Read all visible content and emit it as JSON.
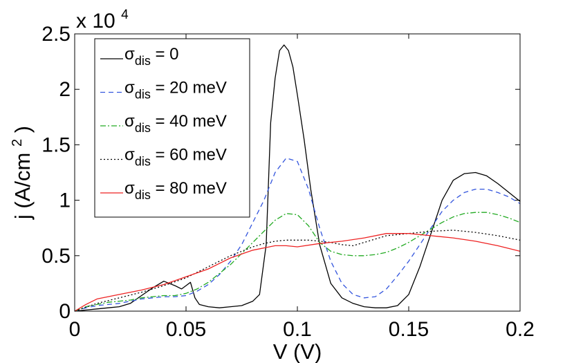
{
  "chart_data": {
    "type": "line",
    "xlabel": "V (V)",
    "ylabel": "j (A/cm²)",
    "ylabel_main": "j (A/cm",
    "ylabel_sup": "2",
    "ylabel_close": ")",
    "y_multiplier_prefix": "x 10",
    "y_multiplier_exp": "4",
    "xlim": [
      0,
      0.2
    ],
    "ylim": [
      0,
      2.5
    ],
    "xticks": [
      0,
      0.05,
      0.1,
      0.15,
      0.2
    ],
    "xtick_labels": [
      "0",
      "0.05",
      "0.1",
      "0.15",
      "0.2"
    ],
    "yticks": [
      0,
      0.5,
      1,
      1.5,
      2,
      2.5
    ],
    "ytick_labels": [
      "0",
      "0.5",
      "1",
      "1.5",
      "2",
      "2.5"
    ],
    "grid": false,
    "legend_position": "top-left",
    "legend_symbol": "σ",
    "legend_subscript": "dis",
    "series": [
      {
        "name": "σdis = 0",
        "label_value": " = 0",
        "color": "#000000",
        "dash": "",
        "x": [
          0,
          0.005,
          0.01,
          0.015,
          0.02,
          0.025,
          0.03,
          0.035,
          0.04,
          0.045,
          0.048,
          0.05,
          0.052,
          0.054,
          0.056,
          0.06,
          0.065,
          0.07,
          0.075,
          0.08,
          0.083,
          0.086,
          0.088,
          0.09,
          0.092,
          0.094,
          0.096,
          0.098,
          0.1,
          0.103,
          0.106,
          0.11,
          0.115,
          0.12,
          0.125,
          0.13,
          0.135,
          0.14,
          0.145,
          0.15,
          0.155,
          0.16,
          0.165,
          0.17,
          0.175,
          0.18,
          0.185,
          0.19,
          0.195,
          0.2
        ],
        "y": [
          0,
          0.01,
          0.02,
          0.03,
          0.04,
          0.07,
          0.14,
          0.21,
          0.27,
          0.23,
          0.2,
          0.23,
          0.26,
          0.12,
          0.06,
          0.04,
          0.03,
          0.04,
          0.05,
          0.09,
          0.15,
          0.6,
          1.7,
          2.1,
          2.35,
          2.4,
          2.35,
          2.2,
          1.95,
          1.55,
          1.1,
          0.6,
          0.25,
          0.12,
          0.07,
          0.04,
          0.03,
          0.03,
          0.05,
          0.15,
          0.4,
          0.7,
          1.0,
          1.18,
          1.24,
          1.25,
          1.22,
          1.15,
          1.07,
          0.99
        ]
      },
      {
        "name": "σdis = 20 meV",
        "label_value": " = 20 meV",
        "color": "#3355dd",
        "dash": "7,5",
        "x": [
          0,
          0.005,
          0.01,
          0.015,
          0.02,
          0.025,
          0.03,
          0.035,
          0.04,
          0.045,
          0.05,
          0.055,
          0.06,
          0.065,
          0.07,
          0.075,
          0.08,
          0.085,
          0.09,
          0.095,
          0.1,
          0.105,
          0.11,
          0.115,
          0.12,
          0.125,
          0.13,
          0.135,
          0.14,
          0.145,
          0.15,
          0.155,
          0.16,
          0.165,
          0.17,
          0.175,
          0.18,
          0.185,
          0.19,
          0.195,
          0.2
        ],
        "y": [
          0,
          0.03,
          0.05,
          0.06,
          0.07,
          0.09,
          0.11,
          0.12,
          0.13,
          0.13,
          0.14,
          0.18,
          0.24,
          0.33,
          0.45,
          0.6,
          0.8,
          1.0,
          1.25,
          1.38,
          1.35,
          1.1,
          0.75,
          0.45,
          0.25,
          0.15,
          0.12,
          0.13,
          0.2,
          0.32,
          0.45,
          0.6,
          0.75,
          0.9,
          1.0,
          1.07,
          1.1,
          1.1,
          1.07,
          1.03,
          0.97
        ]
      },
      {
        "name": "σdis = 40 meV",
        "label_value": " = 40 meV",
        "color": "#22aa22",
        "dash": "8,3,2,3",
        "x": [
          0,
          0.005,
          0.01,
          0.015,
          0.02,
          0.025,
          0.03,
          0.035,
          0.04,
          0.045,
          0.05,
          0.055,
          0.06,
          0.065,
          0.07,
          0.075,
          0.08,
          0.085,
          0.09,
          0.095,
          0.1,
          0.105,
          0.11,
          0.115,
          0.12,
          0.125,
          0.13,
          0.135,
          0.14,
          0.145,
          0.15,
          0.155,
          0.16,
          0.165,
          0.17,
          0.175,
          0.18,
          0.185,
          0.19,
          0.195,
          0.2
        ],
        "y": [
          0,
          0.04,
          0.06,
          0.08,
          0.09,
          0.1,
          0.12,
          0.13,
          0.14,
          0.14,
          0.16,
          0.2,
          0.26,
          0.34,
          0.42,
          0.52,
          0.62,
          0.72,
          0.82,
          0.88,
          0.87,
          0.77,
          0.62,
          0.54,
          0.51,
          0.5,
          0.5,
          0.51,
          0.53,
          0.57,
          0.62,
          0.68,
          0.74,
          0.8,
          0.85,
          0.88,
          0.89,
          0.89,
          0.87,
          0.84,
          0.8
        ]
      },
      {
        "name": "σdis = 60 meV",
        "label_value": " = 60 meV",
        "color": "#000000",
        "dash": "2,3",
        "x": [
          0,
          0.01,
          0.02,
          0.03,
          0.04,
          0.05,
          0.06,
          0.07,
          0.08,
          0.085,
          0.09,
          0.095,
          0.1,
          0.105,
          0.11,
          0.115,
          0.12,
          0.125,
          0.13,
          0.14,
          0.15,
          0.16,
          0.17,
          0.18,
          0.19,
          0.2
        ],
        "y": [
          0,
          0.07,
          0.12,
          0.17,
          0.23,
          0.3,
          0.4,
          0.5,
          0.58,
          0.61,
          0.63,
          0.64,
          0.64,
          0.64,
          0.63,
          0.62,
          0.6,
          0.59,
          0.62,
          0.68,
          0.7,
          0.72,
          0.73,
          0.71,
          0.68,
          0.64
        ]
      },
      {
        "name": "σdis = 80 meV",
        "label_value": " = 80 meV",
        "color": "#ee2222",
        "dash": "",
        "x": [
          0,
          0.005,
          0.01,
          0.02,
          0.03,
          0.04,
          0.05,
          0.06,
          0.07,
          0.08,
          0.09,
          0.095,
          0.1,
          0.11,
          0.12,
          0.13,
          0.14,
          0.15,
          0.16,
          0.17,
          0.18,
          0.19,
          0.2
        ],
        "y": [
          0,
          0.06,
          0.11,
          0.15,
          0.19,
          0.24,
          0.31,
          0.38,
          0.48,
          0.55,
          0.59,
          0.59,
          0.58,
          0.61,
          0.63,
          0.66,
          0.7,
          0.7,
          0.68,
          0.66,
          0.63,
          0.59,
          0.54
        ]
      }
    ]
  }
}
